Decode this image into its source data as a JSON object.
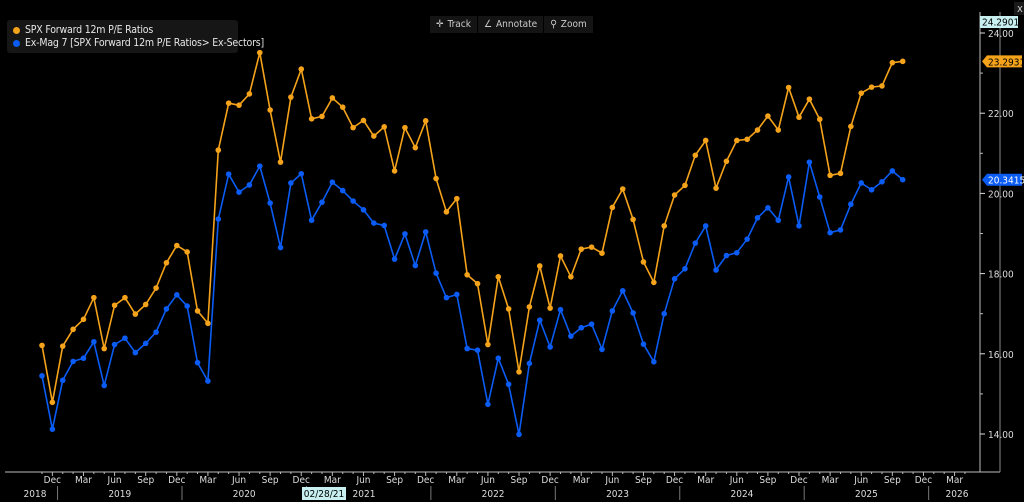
{
  "toolbar": {
    "track": "Track",
    "annotate": "Annotate",
    "zoom": "Zoom",
    "close": "x"
  },
  "colors": {
    "spx": "#f5a31a",
    "exmag": "#0a5cf5",
    "axis": "#cccccc",
    "top_marker_bg": "#c8f0f0"
  },
  "top_marker": "24.2901",
  "cursor_date": "02/28/21",
  "chart_data": {
    "type": "line",
    "title": "",
    "xlabel": "",
    "ylabel": "",
    "ylim": [
      13.7,
      24.3
    ],
    "y_ticks": [
      "24.00",
      "22.00",
      "20.00",
      "18.00",
      "16.00",
      "14.00"
    ],
    "y_tick_values": [
      24,
      22,
      20,
      18,
      16,
      14
    ],
    "grid": false,
    "legend_position": "top-left",
    "x_start": "Nov 2018",
    "x_frequency": "monthly",
    "x_month_ticks": [
      "Dec",
      "Mar",
      "Jun",
      "Sep",
      "Dec",
      "Mar",
      "Jun",
      "Sep",
      "Dec",
      "Mar",
      "Jun",
      "Sep",
      "Dec",
      "Mar",
      "Jun",
      "Sep",
      "Dec",
      "Mar",
      "Jun",
      "Sep",
      "Dec",
      "Mar",
      "Jun",
      "Sep",
      "Dec",
      "Mar",
      "Jun",
      "Sep",
      "Dec",
      "Mar"
    ],
    "x_year_labels": [
      "2018",
      "2019",
      "2020",
      "2021",
      "2022",
      "2023",
      "2024",
      "2025",
      "2026"
    ],
    "series": [
      {
        "name": "SPX Forward 12m P/E Ratios",
        "color": "#f5a31a",
        "last_label": "23.2931",
        "values": [
          16.21,
          14.79,
          16.19,
          16.61,
          16.86,
          17.4,
          16.13,
          17.21,
          17.4,
          16.99,
          17.23,
          17.64,
          18.27,
          18.7,
          18.54,
          17.07,
          16.76,
          21.08,
          22.25,
          22.2,
          22.48,
          23.51,
          22.08,
          20.78,
          22.4,
          23.1,
          21.86,
          21.92,
          22.38,
          22.15,
          21.64,
          21.82,
          21.43,
          21.66,
          20.56,
          21.64,
          21.14,
          21.81,
          20.37,
          19.54,
          19.87,
          17.97,
          17.75,
          16.23,
          17.92,
          17.12,
          15.55,
          17.17,
          18.19,
          17.14,
          18.44,
          17.92,
          18.61,
          18.66,
          18.51,
          19.65,
          20.11,
          19.35,
          18.29,
          17.78,
          19.19,
          19.96,
          20.2,
          20.95,
          21.32,
          20.13,
          20.8,
          21.32,
          21.35,
          21.58,
          21.93,
          21.58,
          22.64,
          21.9,
          22.35,
          21.85,
          20.45,
          20.5,
          21.67,
          22.5,
          22.65,
          22.68,
          23.26,
          23.2931
        ]
      },
      {
        "name": "Ex-Mag 7 [SPX Forward 12m P/E Ratios> Ex-Sectors]",
        "color": "#0a5cf5",
        "last_label": "20.3415",
        "values": [
          15.45,
          14.12,
          15.34,
          15.81,
          15.89,
          16.3,
          15.21,
          16.23,
          16.39,
          16.03,
          16.26,
          16.54,
          17.12,
          17.47,
          17.19,
          15.78,
          15.32,
          19.36,
          20.48,
          20.03,
          20.21,
          20.68,
          19.76,
          18.65,
          20.26,
          20.49,
          19.33,
          19.78,
          20.28,
          20.07,
          19.81,
          19.59,
          19.26,
          19.2,
          18.36,
          18.99,
          18.2,
          19.04,
          18.01,
          17.4,
          17.48,
          16.13,
          16.09,
          14.74,
          15.89,
          15.24,
          13.99,
          15.76,
          16.84,
          16.17,
          17.1,
          16.44,
          16.65,
          16.74,
          16.11,
          17.07,
          17.57,
          17.02,
          16.24,
          15.8,
          17.0,
          17.87,
          18.12,
          18.76,
          19.19,
          18.09,
          18.45,
          18.52,
          18.86,
          19.39,
          19.64,
          19.33,
          20.41,
          19.19,
          20.78,
          19.91,
          19.02,
          19.09,
          19.73,
          20.26,
          20.09,
          20.29,
          20.56,
          20.3415
        ]
      }
    ]
  }
}
